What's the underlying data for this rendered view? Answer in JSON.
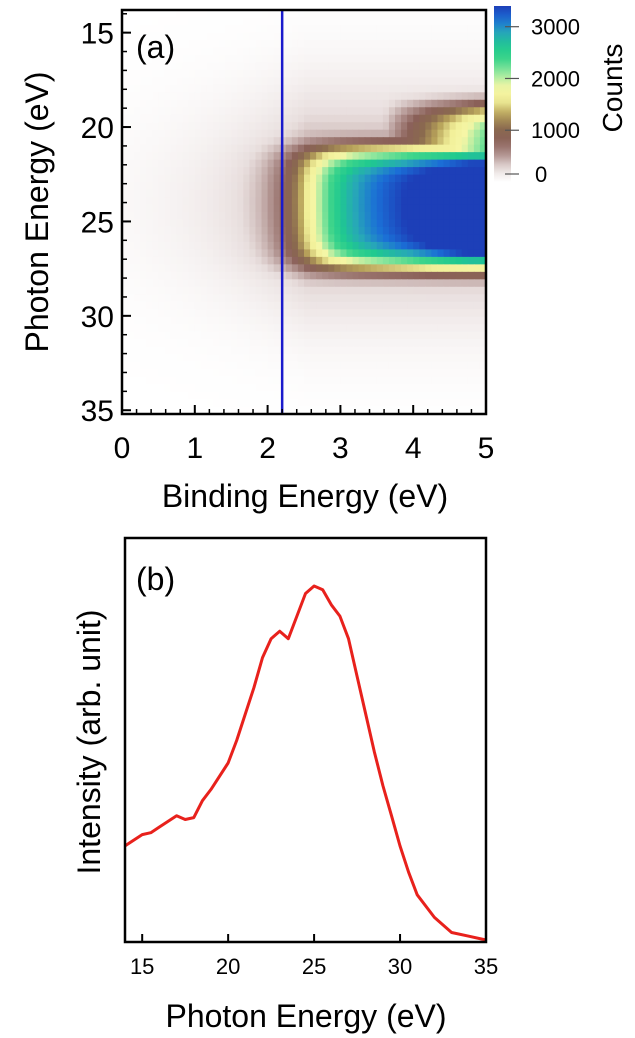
{
  "colors": {
    "marker_line": "#1a1acc",
    "profile_line": "#e8211c",
    "colormap": [
      "#ffffff",
      "#e8dedd",
      "#b29491",
      "#8a6058",
      "#8a6a4e",
      "#b7a25a",
      "#f1ef98",
      "#f6f6a6",
      "#9be9a0",
      "#3fd58b",
      "#1fc98f",
      "#27a8b7",
      "#1b6fd6",
      "#1d3fb8"
    ]
  },
  "chart_data": [
    {
      "panel": "(a)",
      "type": "heatmap",
      "xlabel": "Binding Energy (eV)",
      "ylabel": "Photon Energy (eV)",
      "xlim": [
        0,
        5
      ],
      "ylim": [
        35.2,
        13.8
      ],
      "y_inverted": true,
      "xticks": [
        0,
        1,
        2,
        3,
        4,
        5
      ],
      "yticks": [
        15,
        20,
        25,
        30,
        35
      ],
      "colorbar": {
        "label": "Counts",
        "range": [
          0,
          3400
        ],
        "ticks": [
          0,
          1000,
          2000,
          3000
        ]
      },
      "vertical_marker": {
        "x": 2.2,
        "color": "#1a1acc"
      },
      "intensity_model": {
        "description": "counts vs binding energy and photon energy; bright lobe around photon energy 21-27 eV beyond binding energy ~2.5 eV, peaking near (4.7 eV, 25 eV)",
        "peak_counts": 3400,
        "photon_center": 24.3,
        "photon_half_width": 3.2,
        "binding_onset": 2.55,
        "onset_width": 0.22,
        "background_decay": 1.1
      }
    },
    {
      "panel": "(b)",
      "type": "line",
      "xlabel": "Photon Energy (eV)",
      "ylabel": "Intensity (arb. unit)",
      "xlim": [
        14,
        35
      ],
      "ylim": [
        0,
        1
      ],
      "xticks": [
        15,
        20,
        25,
        30,
        35
      ],
      "series": [
        {
          "color": "#e8211c",
          "x": [
            14,
            15,
            15.5,
            16,
            17,
            17.5,
            18,
            18.5,
            19,
            20,
            20.5,
            21,
            21.5,
            22,
            22.5,
            23,
            23.5,
            24,
            24.5,
            25,
            25.5,
            26,
            26.5,
            27,
            27.5,
            28,
            28.5,
            29,
            29.5,
            30,
            30.5,
            31,
            32,
            33,
            34,
            35
          ],
          "y": [
            0.25,
            0.28,
            0.285,
            0.3,
            0.33,
            0.32,
            0.325,
            0.37,
            0.4,
            0.47,
            0.53,
            0.6,
            0.67,
            0.75,
            0.8,
            0.82,
            0.8,
            0.86,
            0.92,
            0.94,
            0.93,
            0.89,
            0.86,
            0.8,
            0.7,
            0.6,
            0.5,
            0.41,
            0.33,
            0.25,
            0.18,
            0.12,
            0.06,
            0.02,
            0.01,
            0.0
          ]
        }
      ]
    }
  ]
}
